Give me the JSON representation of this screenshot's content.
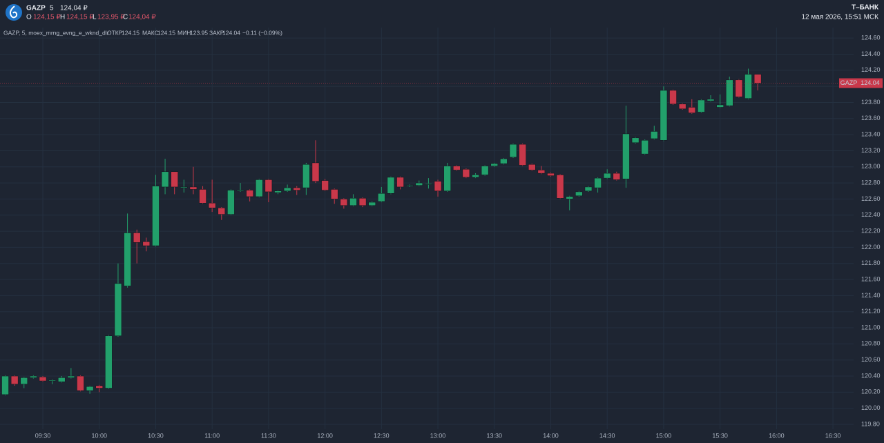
{
  "header": {
    "ticker": "GAZP",
    "interval": "5",
    "price": "124,04 ₽",
    "ohlc": [
      {
        "key": "O",
        "value": "124,15 ₽"
      },
      {
        "key": "H",
        "value": "124,15 ₽"
      },
      {
        "key": "L",
        "value": "123,95 ₽"
      },
      {
        "key": "C",
        "value": "124,04 ₽"
      }
    ],
    "brand": "Т–БАНК",
    "datetime": "12 мая 2026, 15:51 МСК"
  },
  "legend": {
    "name": "GAZP, 5, moex_mrng_evng_e_wknd_dlr",
    "items": [
      {
        "key": "ОТКР",
        "value": "124.15"
      },
      {
        "key": "МАКС",
        "value": "124.15"
      },
      {
        "key": "МИН",
        "value": "123.95"
      },
      {
        "key": "ЗАКР",
        "value": "124.04"
      }
    ],
    "change": "−0.11 (−0.09%)"
  },
  "chart_data": {
    "type": "candlestick",
    "up_color": "#22a06b",
    "down_color": "#c9384a",
    "grid": true,
    "x": [
      "09:10",
      "09:15",
      "09:20",
      "09:25",
      "09:30",
      "09:35",
      "09:40",
      "09:45",
      "09:50",
      "09:55",
      "10:00",
      "10:05",
      "10:10",
      "10:15",
      "10:20",
      "10:25",
      "10:30",
      "10:35",
      "10:40",
      "10:45",
      "10:50",
      "10:55",
      "11:00",
      "11:05",
      "11:10",
      "11:15",
      "11:20",
      "11:25",
      "11:30",
      "11:35",
      "11:40",
      "11:45",
      "11:50",
      "11:55",
      "12:00",
      "12:05",
      "12:10",
      "12:15",
      "12:20",
      "12:25",
      "12:30",
      "12:35",
      "12:40",
      "12:45",
      "12:50",
      "12:55",
      "13:00",
      "13:05",
      "13:10",
      "13:15",
      "13:20",
      "13:25",
      "13:30",
      "13:35",
      "13:40",
      "13:45",
      "13:50",
      "13:55",
      "14:00",
      "14:05",
      "14:10",
      "14:15",
      "14:20",
      "14:25",
      "14:30",
      "14:35",
      "14:40",
      "14:45",
      "14:50",
      "14:55",
      "15:00",
      "15:05",
      "15:10",
      "15:15",
      "15:20",
      "15:25",
      "15:30",
      "15:35",
      "15:40",
      "15:45",
      "15:50"
    ],
    "open": [
      120.17,
      120.4,
      120.3,
      120.38,
      120.39,
      120.34,
      120.33,
      120.38,
      120.4,
      120.22,
      120.28,
      120.25,
      120.9,
      121.52,
      122.18,
      122.07,
      122.02,
      122.75,
      122.94,
      122.74,
      122.75,
      122.72,
      122.55,
      122.49,
      122.41,
      122.7,
      122.71,
      122.63,
      122.84,
      122.68,
      122.7,
      122.74,
      122.74,
      123.05,
      122.83,
      122.72,
      122.6,
      122.52,
      122.61,
      122.52,
      122.57,
      122.67,
      122.87,
      122.76,
      122.77,
      122.78,
      122.82,
      122.7,
      123.01,
      122.97,
      122.87,
      122.9,
      123.01,
      123.04,
      123.12,
      123.28,
      123.03,
      122.96,
      122.92,
      122.9,
      122.6,
      122.64,
      122.7,
      122.74,
      122.86,
      122.92,
      122.85,
      123.3,
      123.16,
      123.35,
      123.33,
      123.95,
      123.78,
      123.74,
      123.68,
      123.82,
      123.74,
      123.76,
      124.08,
      123.85,
      124.15
    ],
    "high": [
      120.41,
      120.41,
      120.39,
      120.41,
      120.4,
      120.36,
      120.4,
      120.5,
      120.41,
      120.28,
      120.29,
      120.91,
      121.8,
      122.42,
      122.22,
      122.12,
      122.9,
      123.1,
      122.94,
      122.84,
      123.0,
      122.76,
      122.84,
      122.5,
      122.72,
      122.8,
      122.72,
      122.85,
      122.85,
      122.71,
      122.78,
      122.76,
      123.05,
      123.33,
      122.85,
      122.73,
      122.61,
      122.66,
      122.62,
      122.57,
      122.75,
      122.88,
      122.88,
      122.78,
      122.83,
      122.86,
      122.84,
      123.05,
      123.02,
      122.98,
      122.92,
      123.02,
      123.05,
      123.11,
      123.29,
      123.29,
      123.04,
      123.01,
      122.93,
      122.91,
      122.64,
      122.7,
      122.76,
      122.87,
      122.97,
      122.94,
      123.76,
      123.37,
      123.34,
      123.51,
      124.0,
      123.96,
      123.79,
      123.84,
      123.84,
      123.89,
      123.9,
      124.12,
      124.09,
      124.22,
      124.15
    ],
    "low": [
      120.16,
      120.28,
      120.25,
      120.37,
      120.33,
      120.3,
      120.32,
      120.37,
      120.21,
      120.18,
      120.2,
      120.24,
      120.89,
      121.5,
      121.8,
      121.95,
      122.01,
      122.66,
      122.66,
      122.68,
      122.66,
      122.54,
      122.44,
      122.34,
      122.4,
      122.69,
      122.57,
      122.62,
      122.56,
      122.66,
      122.69,
      122.65,
      122.65,
      122.8,
      122.7,
      122.54,
      122.48,
      122.51,
      122.5,
      122.51,
      122.56,
      122.66,
      122.72,
      122.75,
      122.76,
      122.73,
      122.63,
      122.69,
      122.95,
      122.86,
      122.86,
      122.89,
      123.0,
      123.03,
      123.11,
      123.01,
      122.95,
      122.91,
      122.88,
      122.6,
      122.46,
      122.63,
      122.69,
      122.68,
      122.85,
      122.83,
      122.74,
      123.29,
      123.15,
      123.34,
      123.32,
      123.77,
      123.71,
      123.66,
      123.67,
      123.81,
      123.73,
      123.75,
      123.86,
      123.84,
      123.95
    ],
    "close": [
      120.4,
      120.3,
      120.38,
      120.4,
      120.34,
      120.35,
      120.38,
      120.4,
      120.22,
      120.27,
      120.25,
      120.9,
      121.55,
      122.18,
      122.06,
      122.02,
      122.76,
      122.94,
      122.75,
      122.75,
      122.72,
      122.55,
      122.49,
      122.41,
      122.71,
      122.71,
      122.63,
      122.84,
      122.69,
      122.7,
      122.74,
      122.71,
      123.03,
      122.82,
      122.71,
      122.6,
      122.52,
      122.61,
      122.52,
      122.56,
      122.67,
      122.87,
      122.75,
      122.77,
      122.8,
      122.79,
      122.7,
      123.01,
      122.96,
      122.87,
      122.9,
      123.01,
      123.04,
      123.1,
      123.28,
      123.02,
      122.96,
      122.92,
      122.89,
      122.61,
      122.63,
      122.69,
      122.75,
      122.86,
      122.92,
      122.84,
      123.41,
      123.36,
      123.33,
      123.44,
      123.95,
      123.78,
      123.72,
      123.67,
      123.83,
      123.84,
      123.77,
      124.08,
      123.87,
      124.15,
      124.04
    ],
    "ylim": [
      119.74,
      124.73
    ],
    "yticks": [
      {
        "value": 119.8,
        "label": "119.80"
      },
      {
        "value": 120.0,
        "label": "120.00"
      },
      {
        "value": 120.2,
        "label": "120.20"
      },
      {
        "value": 120.4,
        "label": "120.40"
      },
      {
        "value": 120.6,
        "label": "120.60"
      },
      {
        "value": 120.8,
        "label": "120.80"
      },
      {
        "value": 121.0,
        "label": "121.00"
      },
      {
        "value": 121.2,
        "label": "121.20"
      },
      {
        "value": 121.4,
        "label": "121.40"
      },
      {
        "value": 121.6,
        "label": "121.60"
      },
      {
        "value": 121.8,
        "label": "121.80"
      },
      {
        "value": 122.0,
        "label": "122.00"
      },
      {
        "value": 122.2,
        "label": "122.20"
      },
      {
        "value": 122.4,
        "label": "122.40"
      },
      {
        "value": 122.6,
        "label": "122.60"
      },
      {
        "value": 122.8,
        "label": "122.80"
      },
      {
        "value": 123.0,
        "label": "123.00"
      },
      {
        "value": 123.2,
        "label": "123.20"
      },
      {
        "value": 123.4,
        "label": "123.40"
      },
      {
        "value": 123.6,
        "label": "123.60"
      },
      {
        "value": 123.8,
        "label": "123.80"
      },
      {
        "value": 124.0,
        "label": "124.00"
      },
      {
        "value": 124.2,
        "label": "124.20"
      },
      {
        "value": 124.4,
        "label": "124.40"
      },
      {
        "value": 124.6,
        "label": "124.60"
      }
    ],
    "xticks": [
      "09:30",
      "10:00",
      "10:30",
      "11:00",
      "11:30",
      "12:00",
      "12:30",
      "13:00",
      "13:30",
      "14:00",
      "14:30",
      "15:00",
      "15:30",
      "16:00",
      "16:30"
    ],
    "last_price": {
      "label": "GAZP",
      "value": 124.04
    }
  }
}
